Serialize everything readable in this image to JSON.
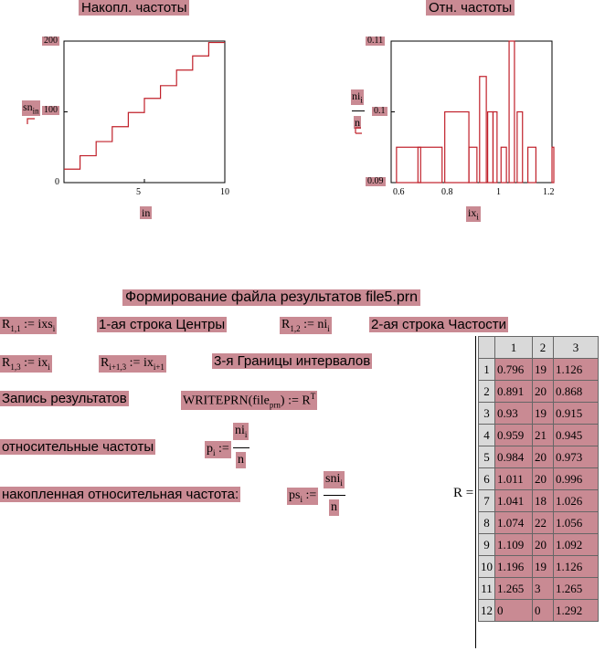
{
  "chart_left": {
    "title": "Накопл. частоты",
    "y_axis_label": "sn",
    "y_axis_sub": "in",
    "x_axis_label": "in",
    "y_ticks": [
      "200",
      "100",
      "0"
    ],
    "x_ticks": [
      "5",
      "10"
    ],
    "xlim": [
      0,
      10
    ],
    "ylim": [
      0,
      200
    ]
  },
  "chart_right": {
    "title": "Отн. частоты",
    "y_axis_num": "ni",
    "y_axis_num_sub": "i",
    "y_axis_den": "n",
    "x_axis_label": "ix",
    "x_axis_sub": "i",
    "y_ticks": [
      "0.11",
      "0.1",
      "0.09"
    ],
    "x_ticks": [
      "0.6",
      "0.8",
      "1",
      "1.2"
    ],
    "xlim": [
      0.6,
      1.2
    ],
    "ylim": [
      0.09,
      0.11
    ]
  },
  "chart_data": [
    {
      "type": "line",
      "title": "Накопл. частоты",
      "xlabel": "in",
      "ylabel": "sn_in",
      "x": [
        0,
        1,
        2,
        3,
        4,
        5,
        6,
        7,
        8,
        9,
        10
      ],
      "values": [
        19,
        38,
        58,
        79,
        99,
        119,
        137,
        159,
        179,
        198,
        198
      ],
      "xlim": [
        0,
        10
      ],
      "ylim": [
        0,
        200
      ]
    },
    {
      "type": "bar",
      "title": "Отн. частоты",
      "xlabel": "ix_i",
      "ylabel": "ni_i / n",
      "x": [
        0.62,
        0.7,
        0.8,
        0.89,
        0.93,
        0.96,
        0.98,
        1.01,
        1.04,
        1.07,
        1.11,
        1.2
      ],
      "values": [
        0.095,
        0.095,
        0.1,
        0.095,
        0.105,
        0.1,
        0.1,
        0.095,
        0.11,
        0.1,
        0.095,
        0.095
      ],
      "xlim": [
        0.6,
        1.2
      ],
      "ylim": [
        0.09,
        0.11
      ]
    }
  ],
  "section_title": "Формирование файла результатов file5.prn",
  "row1": {
    "r11": "R",
    "r11_sub": "1,1",
    "assign": ":=",
    "r11_rhs": "ixs",
    "r11_rhs_sub": "i",
    "label1": "1-ая строка Центры",
    "r12": "R",
    "r12_sub": "1,2",
    "r12_rhs": "ni",
    "r12_rhs_sub": "i",
    "label2": "2-ая строка Частости"
  },
  "row2": {
    "r13": "R",
    "r13_sub": "1,3",
    "r13_rhs": "ix",
    "r13_rhs_sub": "i",
    "r2": "R",
    "r2_sub": "i+1,3",
    "r2_rhs": "ix",
    "r2_rhs_sub": "i+1",
    "label3": "3-я Границы интервалов"
  },
  "write_row": {
    "label": "Запись результатов",
    "func": "WRITEPRN",
    "arg": "file",
    "arg_sub": "prn",
    "rhs": "R",
    "rhs_sup": "T"
  },
  "rel_freq": {
    "label": "относительные частоты",
    "lhs": "p",
    "lhs_sub": "i",
    "num": "ni",
    "num_sub": "i",
    "den": "n"
  },
  "cum_freq": {
    "label": "накопленная относительная частота:",
    "lhs": "ps",
    "lhs_sub": "i",
    "num": "sni",
    "num_sub": "i",
    "den": "n"
  },
  "result": {
    "label": "R =",
    "columns": [
      "1",
      "2",
      "3"
    ],
    "rows": [
      {
        "i": "1",
        "c1": "0.796",
        "c2": "19",
        "c3": "1.126"
      },
      {
        "i": "2",
        "c1": "0.891",
        "c2": "20",
        "c3": "0.868"
      },
      {
        "i": "3",
        "c1": "0.93",
        "c2": "19",
        "c3": "0.915"
      },
      {
        "i": "4",
        "c1": "0.959",
        "c2": "21",
        "c3": "0.945"
      },
      {
        "i": "5",
        "c1": "0.984",
        "c2": "20",
        "c3": "0.973"
      },
      {
        "i": "6",
        "c1": "1.011",
        "c2": "20",
        "c3": "0.996"
      },
      {
        "i": "7",
        "c1": "1.041",
        "c2": "18",
        "c3": "1.026"
      },
      {
        "i": "8",
        "c1": "1.074",
        "c2": "22",
        "c3": "1.056"
      },
      {
        "i": "9",
        "c1": "1.109",
        "c2": "20",
        "c3": "1.092"
      },
      {
        "i": "10",
        "c1": "1.196",
        "c2": "19",
        "c3": "1.126"
      },
      {
        "i": "11",
        "c1": "1.265",
        "c2": "3",
        "c3": "1.265"
      },
      {
        "i": "12",
        "c1": "0",
        "c2": "0",
        "c3": "1.292"
      }
    ]
  },
  "colors": {
    "highlight": "#c98a93",
    "plot_line": "#c0202a",
    "axis": "#000000"
  }
}
